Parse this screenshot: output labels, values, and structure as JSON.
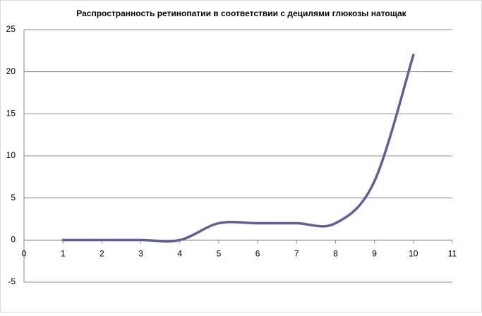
{
  "chart_data": {
    "type": "line",
    "title": "Распространность ретинопатии в соответствии с децилями глюкозы натощак",
    "x": [
      1,
      2,
      3,
      4,
      5,
      6,
      7,
      8,
      9,
      10
    ],
    "series": [
      {
        "color": "#5f5f9b",
        "values": [
          0,
          0,
          0,
          0,
          2,
          2,
          2,
          2,
          7,
          22
        ]
      }
    ],
    "xlim": [
      0,
      11
    ],
    "xticks": [
      0,
      1,
      2,
      3,
      4,
      5,
      6,
      7,
      8,
      9,
      10,
      11
    ],
    "ylim": [
      -5,
      25
    ],
    "yticks": [
      -5,
      0,
      5,
      10,
      15,
      20,
      25
    ],
    "grid": true,
    "smooth": true
  }
}
